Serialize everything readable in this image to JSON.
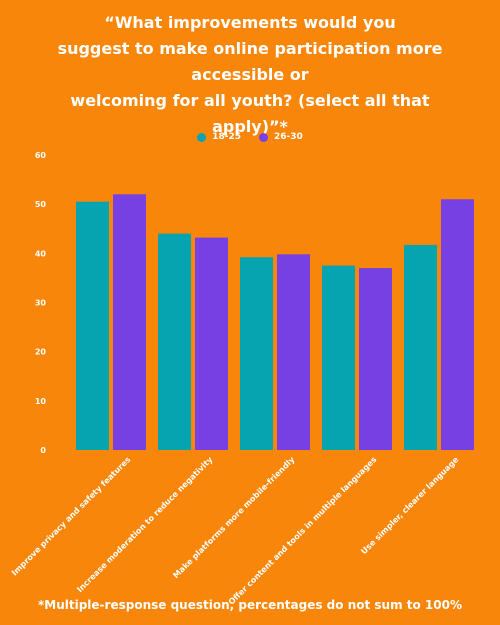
{
  "title_lines": [
    "“What improvements would you",
    "suggest to make online participation more accessible or",
    "welcoming for all youth? (select all that",
    "apply)”*"
  ],
  "footnote": "*Multiple-response question, percentages do not sum to 100%",
  "colors": {
    "background": "#f7860a",
    "series_18_25": "#06a3b1",
    "series_26_30": "#7640e3",
    "text": "#ffffff"
  },
  "chart_data": {
    "type": "bar",
    "categories": [
      "Improve privacy and safety features",
      "Increase moderation to reduce negativity",
      "Make platforms more mobile-friendly",
      "Offer content and tools in multiple languages",
      "Use simpler, clearer language"
    ],
    "series": [
      {
        "name": "18-25",
        "values": [
          50.5,
          44,
          39.2,
          37.5,
          41.7
        ]
      },
      {
        "name": "26-30",
        "values": [
          52,
          43.2,
          39.8,
          37,
          51
        ]
      }
    ],
    "ylim": [
      0,
      60
    ],
    "yticks": [
      0,
      10,
      20,
      30,
      40,
      50,
      60
    ],
    "legend_position": "top-center",
    "grid": false
  }
}
